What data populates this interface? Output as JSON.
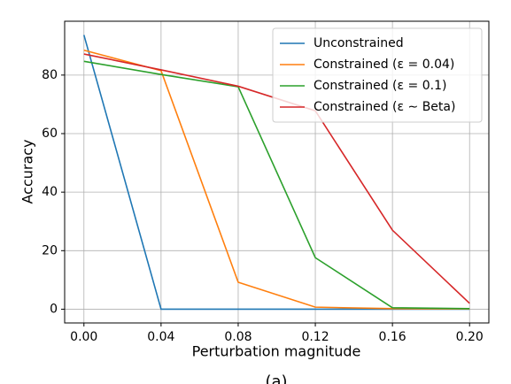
{
  "chart_data": {
    "type": "line",
    "x_label": "Perturbation magnitude",
    "y_label": "Accuracy",
    "caption": "(a)",
    "x": [
      0.0,
      0.04,
      0.08,
      0.12,
      0.16,
      0.2
    ],
    "series": [
      {
        "name": "Unconstrained",
        "color": "#1f77b4",
        "values": [
          93.7,
          0,
          0,
          0,
          0,
          0
        ]
      },
      {
        "name": "Constrained (ε = 0.04)",
        "color": "#ff7f0e",
        "values": [
          88.5,
          81.5,
          9.2,
          0.7,
          0.2,
          0.1
        ]
      },
      {
        "name": "Constrained (ε = 0.1)",
        "color": "#2ca02c",
        "values": [
          84.7,
          80.2,
          76.0,
          17.6,
          0.5,
          0.2
        ]
      },
      {
        "name": "Constrained (ε ∼ Beta)",
        "color": "#d62728",
        "values": [
          87.2,
          81.8,
          76.2,
          67.8,
          27.0,
          2.0
        ]
      }
    ],
    "xlim": [
      -0.01,
      0.21
    ],
    "xticks": [
      {
        "value": 0.0,
        "label": "0.00"
      },
      {
        "value": 0.04,
        "label": "0.04"
      },
      {
        "value": 0.08,
        "label": "0.08"
      },
      {
        "value": 0.12,
        "label": "0.12"
      },
      {
        "value": 0.16,
        "label": "0.16"
      },
      {
        "value": 0.2,
        "label": "0.20"
      }
    ],
    "ylim": [
      -4.7,
      98.4
    ],
    "yticks": [
      0,
      20,
      40,
      60,
      80
    ],
    "grid": true,
    "legend": "upper right"
  }
}
